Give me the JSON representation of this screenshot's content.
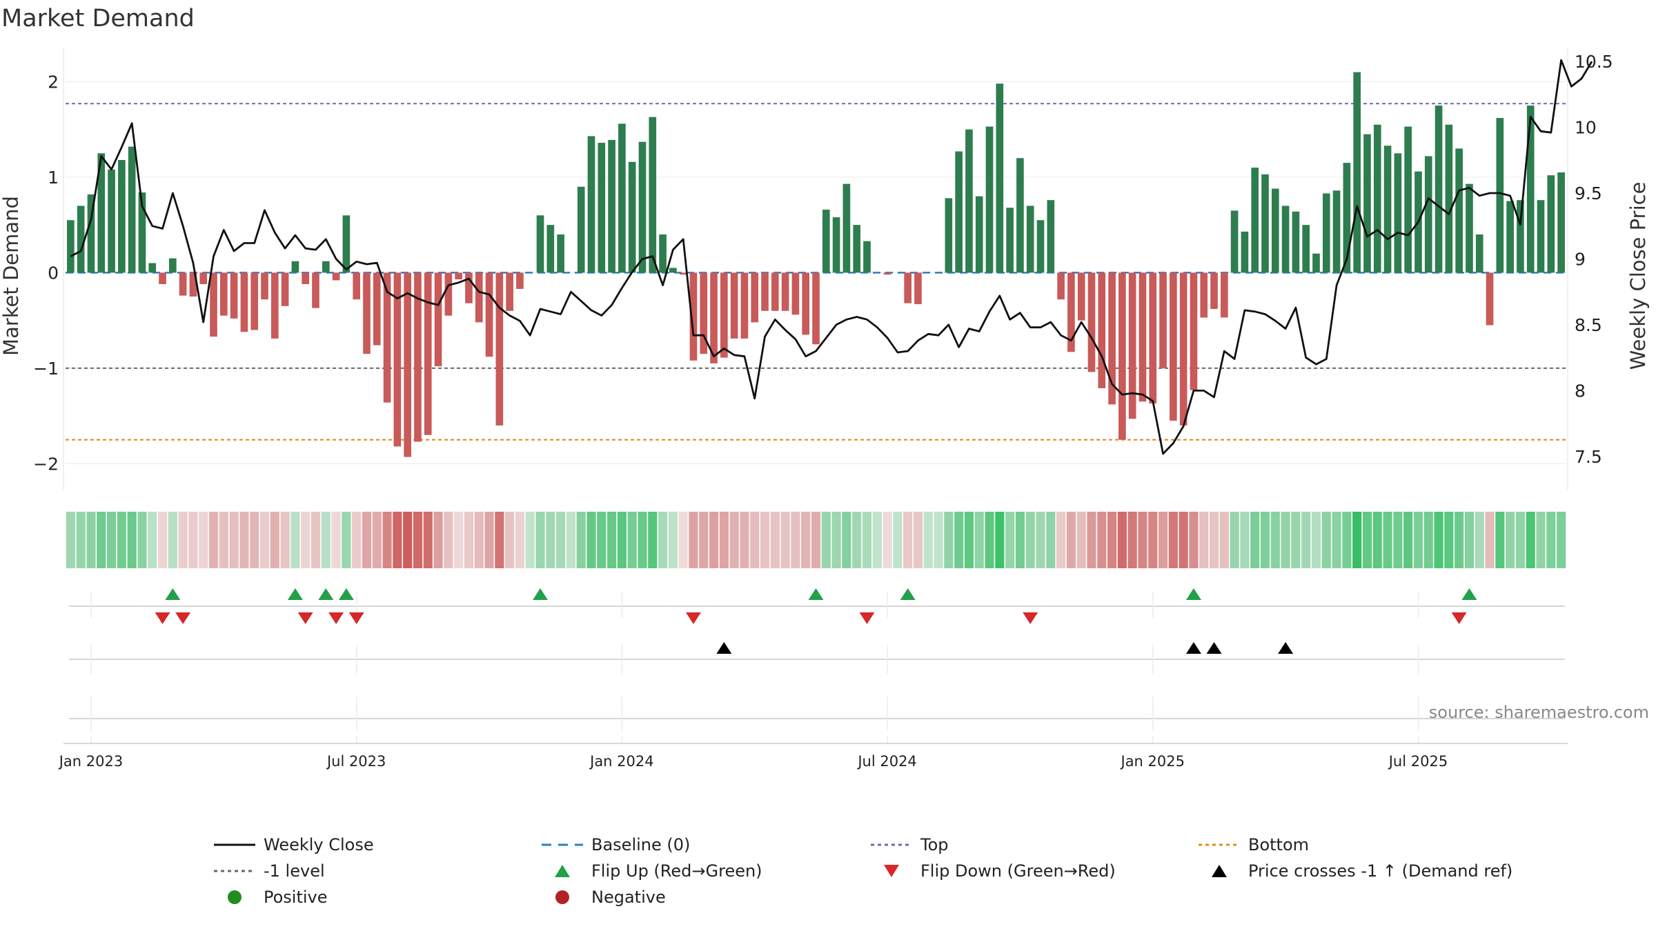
{
  "title": "Market Demand",
  "source": "source: sharemaestro.com",
  "colors": {
    "positive_bar": "#2e7d4f",
    "negative_bar": "#c85a5a",
    "price_line": "#111111",
    "baseline": "#2a7fc1",
    "top": "#6a6ab5",
    "minus1": "#666666",
    "bottom": "#e08b1e",
    "flip_up": "#22a04a",
    "flip_down": "#d62828",
    "cross": "#000000",
    "positive_dot": "#228b22",
    "negative_dot": "#b22222"
  },
  "chart_data": {
    "type": "bar",
    "title": "Market Demand",
    "ylabel": "Market Demand",
    "y2label": "Weekly Close Price",
    "ylim": [
      -2.2,
      2.35
    ],
    "y2lim": [
      7.3,
      10.6
    ],
    "yticks": [
      2,
      1,
      0,
      -1,
      -2
    ],
    "yticklabels": [
      "2",
      "1",
      "0",
      "−1",
      "−2"
    ],
    "y2ticks": [
      10.5,
      10,
      9.5,
      9,
      8.5,
      8,
      7.5
    ],
    "y2ticklabels": [
      "10.5",
      "10",
      "9.5",
      "9",
      "8.5",
      "8",
      "7.5"
    ],
    "levels": {
      "baseline": 0,
      "top": 1.77,
      "minus1": -1,
      "bottom": -1.75
    },
    "xticks": [
      {
        "week": 2,
        "label": "Jan 2023"
      },
      {
        "week": 28,
        "label": "Jul 2023"
      },
      {
        "week": 54,
        "label": "Jan 2024"
      },
      {
        "week": 80,
        "label": "Jul 2024"
      },
      {
        "week": 106,
        "label": "Jan 2025"
      },
      {
        "week": 132,
        "label": "Jul 2025"
      }
    ],
    "series": [
      {
        "name": "Market Demand",
        "values": [
          0.55,
          0.7,
          0.82,
          1.25,
          1.08,
          1.18,
          1.32,
          0.84,
          0.1,
          -0.12,
          0.15,
          -0.24,
          -0.25,
          -0.12,
          -0.67,
          -0.45,
          -0.48,
          -0.62,
          -0.6,
          -0.28,
          -0.69,
          -0.35,
          0.12,
          -0.12,
          -0.37,
          0.12,
          -0.08,
          0.6,
          -0.28,
          -0.85,
          -0.76,
          -1.36,
          -1.82,
          -1.93,
          -1.77,
          -1.7,
          -0.98,
          -0.45,
          -0.07,
          -0.32,
          -0.52,
          -0.88,
          -1.6,
          -0.4,
          -0.17,
          0.0,
          0.6,
          0.5,
          0.4,
          0.0,
          0.9,
          1.43,
          1.36,
          1.39,
          1.56,
          1.16,
          1.37,
          1.63,
          0.4,
          0.05,
          -0.02,
          -0.92,
          -0.85,
          -0.95,
          -0.89,
          -0.69,
          -0.69,
          -0.52,
          -0.4,
          -0.4,
          -0.4,
          -0.44,
          -0.65,
          -0.75,
          0.66,
          0.58,
          0.93,
          0.5,
          0.33,
          0.0,
          -0.02,
          0.0,
          -0.32,
          -0.33,
          0.0,
          0.0,
          0.78,
          1.27,
          1.5,
          0.8,
          1.53,
          1.98,
          0.68,
          1.2,
          0.7,
          0.55,
          0.76,
          -0.28,
          -0.83,
          -0.5,
          -1.04,
          -1.21,
          -1.38,
          -1.75,
          -1.53,
          -1.35,
          -1.37,
          -1.0,
          -1.55,
          -1.6,
          -1.23,
          -0.47,
          -0.38,
          -0.47,
          0.65,
          0.43,
          1.1,
          1.03,
          0.88,
          0.7,
          0.64,
          0.5,
          0.2,
          0.83,
          0.86,
          1.15,
          2.1,
          1.45,
          1.55,
          1.33,
          1.25,
          1.53,
          1.06,
          1.22,
          1.75,
          1.55,
          1.3,
          0.93,
          0.4,
          -0.55,
          1.62,
          0.75,
          0.76,
          1.75,
          0.76,
          1.02,
          1.05
        ]
      },
      {
        "name": "Weekly Close",
        "values": [
          9.02,
          9.06,
          9.3,
          9.78,
          9.68,
          9.85,
          10.03,
          9.4,
          9.25,
          9.23,
          9.5,
          9.25,
          8.97,
          8.52,
          9.02,
          9.22,
          9.06,
          9.12,
          9.12,
          9.37,
          9.2,
          9.08,
          9.18,
          9.08,
          9.07,
          9.15,
          9.0,
          8.92,
          8.98,
          8.96,
          8.97,
          8.75,
          8.7,
          8.74,
          8.7,
          8.67,
          8.65,
          8.8,
          8.82,
          8.85,
          8.75,
          8.73,
          8.63,
          8.57,
          8.53,
          8.42,
          8.62,
          8.6,
          8.58,
          8.75,
          8.68,
          8.61,
          8.57,
          8.65,
          8.78,
          8.9,
          9.0,
          9.02,
          8.8,
          9.07,
          9.15,
          8.42,
          8.42,
          8.26,
          8.32,
          8.27,
          8.26,
          7.94,
          8.41,
          8.54,
          8.46,
          8.39,
          8.26,
          8.3,
          8.4,
          8.5,
          8.54,
          8.56,
          8.54,
          8.48,
          8.4,
          8.29,
          8.3,
          8.38,
          8.43,
          8.42,
          8.5,
          8.33,
          8.47,
          8.45,
          8.6,
          8.72,
          8.54,
          8.59,
          8.48,
          8.48,
          8.52,
          8.42,
          8.38,
          8.52,
          8.4,
          8.26,
          8.05,
          7.97,
          7.98,
          7.97,
          7.92,
          7.52,
          7.6,
          7.73,
          8.0,
          8.0,
          7.95,
          8.3,
          8.24,
          8.61,
          8.6,
          8.58,
          8.53,
          8.47,
          8.63,
          8.25,
          8.2,
          8.24,
          8.8,
          9.0,
          9.4,
          9.17,
          9.22,
          9.15,
          9.2,
          9.18,
          9.28,
          9.46,
          9.4,
          9.34,
          9.52,
          9.54,
          9.48,
          9.5,
          9.5,
          9.48,
          9.26,
          10.08,
          9.97,
          9.96,
          10.51,
          10.31,
          10.37,
          10.5
        ]
      }
    ],
    "heat_strip": "Demand intensity strip (one cell per week)",
    "flip_up_weeks": [
      10,
      22,
      25,
      27,
      46,
      73,
      82,
      110,
      137
    ],
    "flip_down_weeks": [
      9,
      11,
      23,
      26,
      28,
      61,
      78,
      94,
      136
    ],
    "price_cross_weeks": [
      64,
      110,
      112,
      119
    ],
    "legend": [
      {
        "key": "line",
        "label": "Weekly Close"
      },
      {
        "key": "dash",
        "label": "Baseline (0)"
      },
      {
        "key": "dotted-top",
        "label": "Top"
      },
      {
        "key": "dotted-bottom",
        "label": "Bottom"
      },
      {
        "key": "dotted-minus1",
        "label": "-1 level"
      },
      {
        "key": "tri-up",
        "label": "Flip Up (Red→Green)"
      },
      {
        "key": "tri-down",
        "label": "Flip Down (Green→Red)"
      },
      {
        "key": "tri-black",
        "label": "Price crosses -1 ↑ (Demand ref)"
      },
      {
        "key": "dot-pos",
        "label": "Positive"
      },
      {
        "key": "dot-neg",
        "label": "Negative"
      }
    ]
  }
}
